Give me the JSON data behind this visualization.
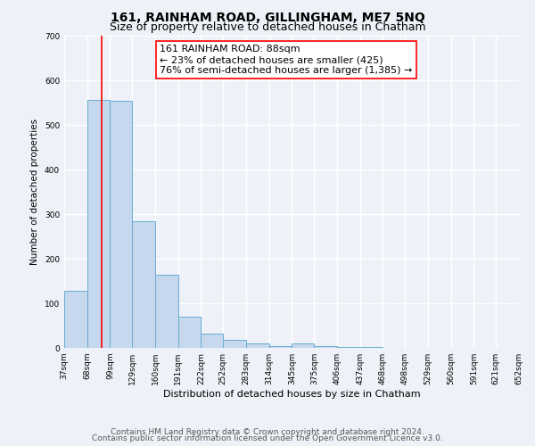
{
  "title": "161, RAINHAM ROAD, GILLINGHAM, ME7 5NQ",
  "subtitle": "Size of property relative to detached houses in Chatham",
  "xlabel": "Distribution of detached houses by size in Chatham",
  "ylabel": "Number of detached properties",
  "bin_edges": [
    37,
    68,
    99,
    129,
    160,
    191,
    222,
    252,
    283,
    314,
    345,
    375,
    406,
    437,
    468,
    498,
    529,
    560,
    591,
    621,
    652
  ],
  "bar_heights": [
    128,
    557,
    555,
    285,
    165,
    70,
    32,
    18,
    10,
    5,
    10,
    5,
    2,
    2,
    0,
    0,
    0,
    0,
    0
  ],
  "bar_color": "#c5d8ed",
  "bar_edge_color": "#6aacd4",
  "background_color": "#eef2f8",
  "grid_color": "#ffffff",
  "red_line_x": 88,
  "annotation_line1": "161 RAINHAM ROAD: 88sqm",
  "annotation_line2": "← 23% of detached houses are smaller (425)",
  "annotation_line3": "76% of semi-detached houses are larger (1,385) →",
  "ylim": [
    0,
    700
  ],
  "yticks": [
    0,
    100,
    200,
    300,
    400,
    500,
    600,
    700
  ],
  "tick_labels": [
    "37sqm",
    "68sqm",
    "99sqm",
    "129sqm",
    "160sqm",
    "191sqm",
    "222sqm",
    "252sqm",
    "283sqm",
    "314sqm",
    "345sqm",
    "375sqm",
    "406sqm",
    "437sqm",
    "468sqm",
    "498sqm",
    "529sqm",
    "560sqm",
    "591sqm",
    "621sqm",
    "652sqm"
  ],
  "footer_line1": "Contains HM Land Registry data © Crown copyright and database right 2024.",
  "footer_line2": "Contains public sector information licensed under the Open Government Licence v3.0.",
  "title_fontsize": 10,
  "subtitle_fontsize": 9,
  "ylabel_fontsize": 7.5,
  "xlabel_fontsize": 8,
  "tick_fontsize": 6.5,
  "annotation_fontsize": 8,
  "footer_fontsize": 6.5
}
